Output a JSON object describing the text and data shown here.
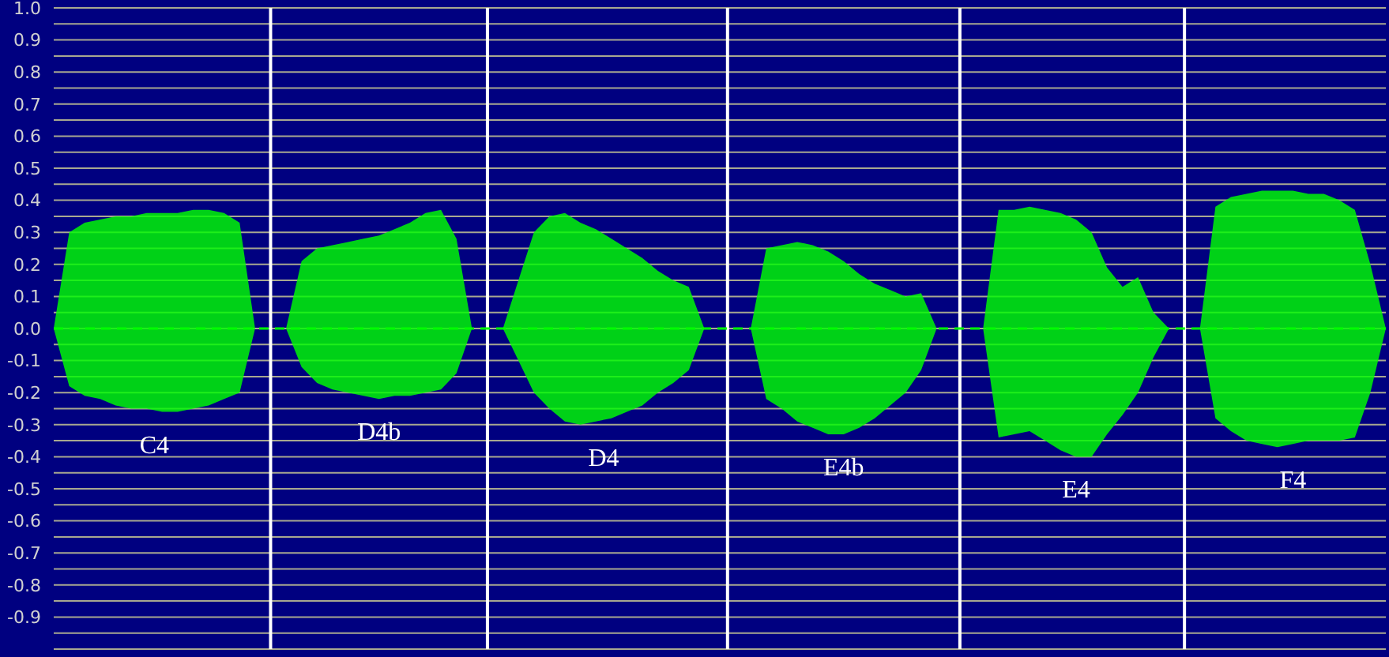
{
  "chart_data": {
    "type": "line",
    "categories": [
      null,
      null,
      null,
      null,
      null,
      null,
      null,
      null,
      null,
      null,
      null,
      null,
      null,
      null,
      null,
      null,
      null,
      null,
      null,
      null,
      null,
      null,
      null,
      null,
      null,
      null,
      null,
      null,
      null,
      null,
      null,
      null,
      null,
      null,
      null,
      null,
      null,
      null,
      null,
      null,
      null,
      null,
      null,
      null,
      null,
      null,
      null,
      null,
      null,
      null,
      null,
      null,
      null,
      null,
      null,
      null,
      null,
      null,
      null,
      null,
      null,
      null,
      null,
      null,
      null,
      null,
      null,
      null,
      null,
      null,
      null,
      null,
      null,
      null,
      null,
      null,
      null,
      null,
      null,
      null,
      null,
      null,
      null,
      null,
      null,
      null,
      null
    ],
    "series": [
      {
        "color": "#00ff00",
        "line_style": "dashed",
        "values": [
          0,
          0,
          0,
          0,
          0,
          0,
          0,
          0,
          0,
          0,
          0,
          0,
          0,
          0,
          0,
          0,
          0,
          0,
          0,
          0,
          0,
          0,
          0,
          0,
          0,
          0,
          0,
          0,
          0,
          0,
          0,
          0,
          0,
          0,
          0,
          0,
          0,
          0,
          0,
          0,
          0,
          0,
          0,
          0,
          0,
          0,
          0,
          0,
          0,
          0,
          0,
          0,
          0,
          0,
          0,
          0,
          0,
          0,
          0,
          0,
          0,
          0,
          0,
          0,
          0,
          0,
          0,
          0,
          0,
          0,
          0,
          0,
          0,
          0,
          0,
          0,
          0,
          0,
          0,
          0,
          0,
          0,
          0,
          0,
          0,
          0,
          0
        ],
        "upper": [
          0,
          0.3,
          0.33,
          0.34,
          0.35,
          0.35,
          0.36,
          0.36,
          0.36,
          0.37,
          0.37,
          0.36,
          0.33,
          0,
          0,
          0,
          0.21,
          0.25,
          0.26,
          0.27,
          0.28,
          0.29,
          0.31,
          0.33,
          0.36,
          0.37,
          0.28,
          0,
          0,
          0,
          0.15,
          0.3,
          0.35,
          0.36,
          0.33,
          0.31,
          0.28,
          0.25,
          0.22,
          0.18,
          0.15,
          0.13,
          0,
          0,
          0,
          0,
          0.25,
          0.26,
          0.27,
          0.26,
          0.24,
          0.21,
          0.17,
          0.14,
          0.12,
          0.1,
          0.11,
          0,
          0,
          0,
          0,
          0.37,
          0.37,
          0.38,
          0.37,
          0.36,
          0.34,
          0.3,
          0.19,
          0.13,
          0.16,
          0.05,
          0,
          0,
          0,
          0.38,
          0.41,
          0.42,
          0.43,
          0.43,
          0.43,
          0.42,
          0.42,
          0.4,
          0.37,
          0.2,
          0
        ],
        "lower": [
          0,
          -0.18,
          -0.21,
          -0.22,
          -0.24,
          -0.25,
          -0.25,
          -0.26,
          -0.26,
          -0.25,
          -0.24,
          -0.22,
          -0.2,
          0,
          0,
          0,
          -0.12,
          -0.17,
          -0.19,
          -0.2,
          -0.21,
          -0.22,
          -0.21,
          -0.21,
          -0.2,
          -0.19,
          -0.14,
          0,
          0,
          0,
          -0.1,
          -0.2,
          -0.25,
          -0.29,
          -0.3,
          -0.29,
          -0.28,
          -0.26,
          -0.24,
          -0.2,
          -0.17,
          -0.13,
          0,
          0,
          0,
          0,
          -0.22,
          -0.25,
          -0.29,
          -0.31,
          -0.33,
          -0.33,
          -0.31,
          -0.28,
          -0.24,
          -0.2,
          -0.13,
          0,
          0,
          0,
          0,
          -0.34,
          -0.33,
          -0.32,
          -0.35,
          -0.38,
          -0.4,
          -0.4,
          -0.33,
          -0.27,
          -0.2,
          -0.09,
          0,
          0,
          0,
          -0.28,
          -0.32,
          -0.35,
          -0.36,
          -0.37,
          -0.36,
          -0.35,
          -0.35,
          -0.35,
          -0.34,
          -0.2,
          0
        ]
      }
    ],
    "ylim": [
      -1,
      1
    ],
    "yticks": [
      {
        "value": -0.95,
        "label": null
      },
      -0.9,
      {
        "value": -0.85,
        "label": null
      },
      -0.8,
      {
        "value": -0.75,
        "label": null
      },
      -0.7,
      {
        "value": -0.65,
        "label": null
      },
      -0.6,
      {
        "value": -0.55,
        "label": null
      },
      -0.5,
      {
        "value": -0.45,
        "label": null
      },
      -0.4,
      {
        "value": -0.35,
        "label": null
      },
      -0.3,
      {
        "value": -0.25,
        "label": null
      },
      -0.2,
      {
        "value": -0.15,
        "label": null
      },
      -0.1,
      {
        "value": -0.05,
        "label": null
      },
      {
        "value": 0,
        "label": "0.0"
      },
      {
        "value": 0.05,
        "label": null
      },
      0.1,
      {
        "value": 0.15,
        "label": null
      },
      0.2,
      {
        "value": 0.25,
        "label": null
      },
      0.3,
      {
        "value": 0.35,
        "label": null
      },
      0.4,
      {
        "value": 0.45,
        "label": null
      },
      0.5,
      {
        "value": 0.55,
        "label": null
      },
      0.6,
      {
        "value": 0.65,
        "label": null
      },
      0.7,
      {
        "value": 0.75,
        "label": null
      },
      0.8,
      {
        "value": 0.85,
        "label": null
      },
      0.9,
      {
        "value": 0.95,
        "label": null
      },
      {
        "value": 1,
        "label": "1.0"
      }
    ],
    "tick_labels": "y",
    "grid": true,
    "annotations": [
      "C4",
      "D4b",
      "D4",
      "E4b",
      "E4",
      "F4"
    ]
  }
}
